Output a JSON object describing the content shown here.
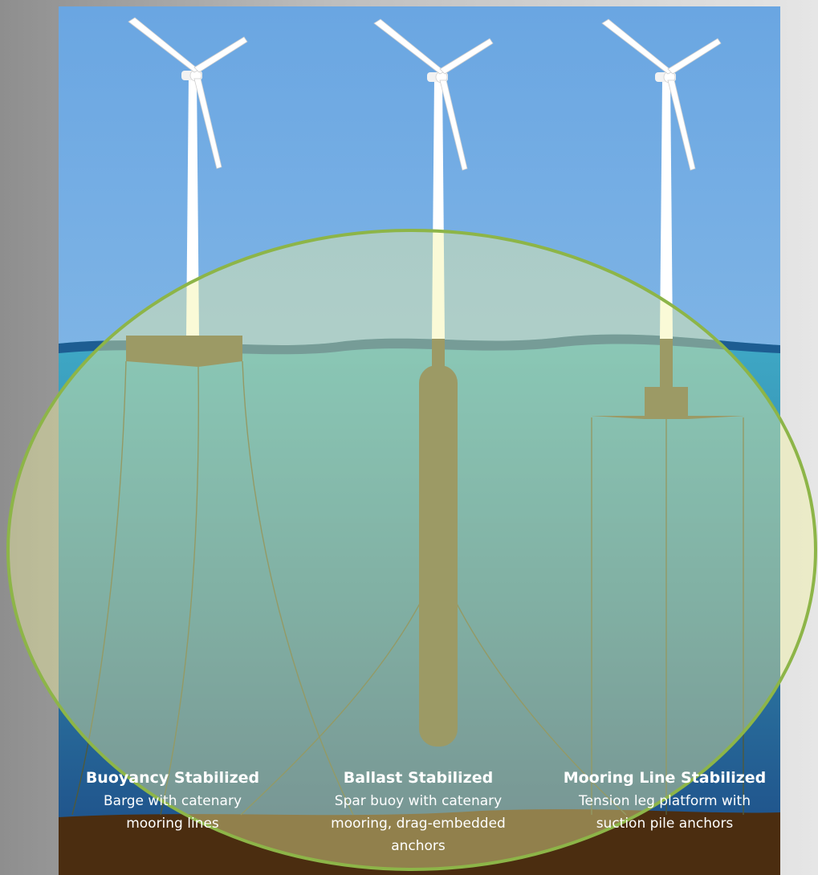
{
  "diagram": {
    "concepts": [
      {
        "title": "Buoyancy Stabilized",
        "description_lines": [
          "Barge with catenary",
          "mooring lines"
        ]
      },
      {
        "title": "Ballast Stabilized",
        "description_lines": [
          "Spar buoy with catenary",
          "mooring, drag-embedded",
          "anchors"
        ]
      },
      {
        "title": "Mooring Line Stabilized",
        "description_lines": [
          "Tension leg platform with",
          "suction pile anchors"
        ]
      }
    ]
  }
}
